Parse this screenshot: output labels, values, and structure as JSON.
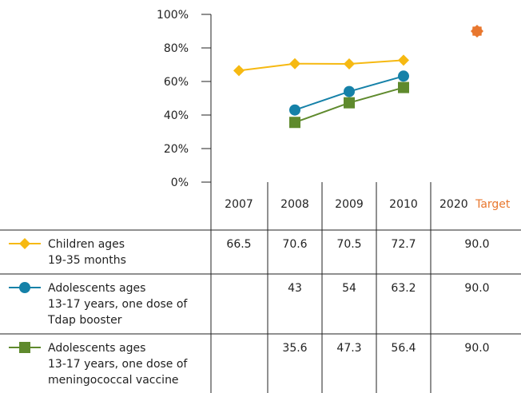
{
  "chart_data": {
    "type": "line",
    "y_axis": {
      "min": 0,
      "max": 100,
      "tick_labels": [
        "0%",
        "20%",
        "40%",
        "60%",
        "80%",
        "100%"
      ]
    },
    "categories": [
      "2007",
      "2008",
      "2009",
      "2010",
      "2020"
    ],
    "target_label": "Target",
    "series": [
      {
        "name_lines": [
          "Children ages",
          "19-35 months"
        ],
        "color": "#f6b912",
        "marker": "diamond",
        "values": [
          66.5,
          70.6,
          70.5,
          72.7,
          null
        ],
        "table_values": [
          "66.5",
          "70.6",
          "70.5",
          "72.7",
          "90.0"
        ]
      },
      {
        "name_lines": [
          "Adolescents ages",
          "13-17 years, one dose of",
          "Tdap booster"
        ],
        "color": "#1581a8",
        "marker": "circle",
        "values": [
          null,
          43,
          54,
          63.2,
          null
        ],
        "table_values": [
          "",
          "43",
          "54",
          "63.2",
          "90.0"
        ]
      },
      {
        "name_lines": [
          "Adolescents ages",
          "13-17 years, one dose of",
          "meningococcal vaccine"
        ],
        "color": "#5f8a2d",
        "marker": "square",
        "values": [
          null,
          35.6,
          47.3,
          56.4,
          null
        ],
        "table_values": [
          "",
          "35.6",
          "47.3",
          "56.4",
          "90.0"
        ]
      }
    ],
    "target": {
      "value": 90.0,
      "category": "2020",
      "color": "#e8772e",
      "marker": "star"
    }
  }
}
